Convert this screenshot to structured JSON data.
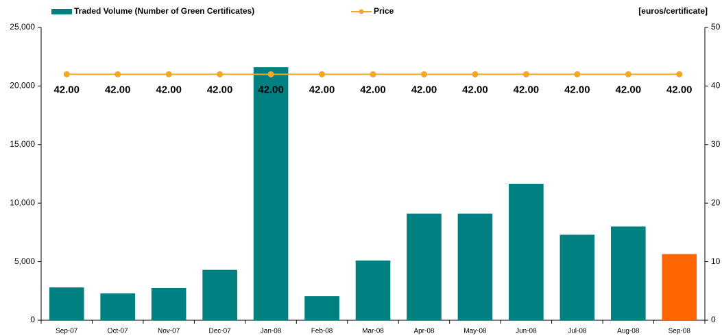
{
  "chart_data": {
    "type": "bar",
    "categories": [
      "Sep-07",
      "Oct-07",
      "Nov-07",
      "Dec-07",
      "Jan-08",
      "Feb-08",
      "Mar-08",
      "Apr-08",
      "May-08",
      "Jun-08",
      "Jul-08",
      "Aug-08",
      "Sep-08"
    ],
    "series": [
      {
        "name": "Traded Volume (Number of Green Certificates)",
        "type": "bar",
        "color": "#008080",
        "colors": [
          "#008080",
          "#008080",
          "#008080",
          "#008080",
          "#008080",
          "#008080",
          "#008080",
          "#008080",
          "#008080",
          "#008080",
          "#008080",
          "#008080",
          "#ff6600"
        ],
        "values": [
          2800,
          2300,
          2750,
          4300,
          21600,
          2050,
          5100,
          9100,
          9100,
          11650,
          7300,
          8000,
          5650
        ]
      },
      {
        "name": "Price",
        "type": "line",
        "color": "#f5a623",
        "axis": "y2",
        "values": [
          42,
          42,
          42,
          42,
          42,
          42,
          42,
          42,
          42,
          42,
          42,
          42,
          42
        ],
        "value_labels": [
          "42.00",
          "42.00",
          "42.00",
          "42.00",
          "42.00",
          "42.00",
          "42.00",
          "42.00",
          "42.00",
          "42.00",
          "42.00",
          "42.00",
          "42.00"
        ]
      }
    ],
    "y2_label": "[euros/certificate]",
    "ylim": [
      0,
      25000
    ],
    "yticks": [
      0,
      {
        "value": 5000,
        "label": "5,000"
      },
      {
        "value": 10000,
        "label": "10,000"
      },
      {
        "value": 15000,
        "label": "15,000"
      },
      {
        "value": 20000,
        "label": "20,000"
      },
      {
        "value": 25000,
        "label": "25,000"
      }
    ],
    "y2lim": [
      0,
      50
    ],
    "y2ticks": [
      0,
      10,
      20,
      30,
      40,
      50
    ]
  }
}
